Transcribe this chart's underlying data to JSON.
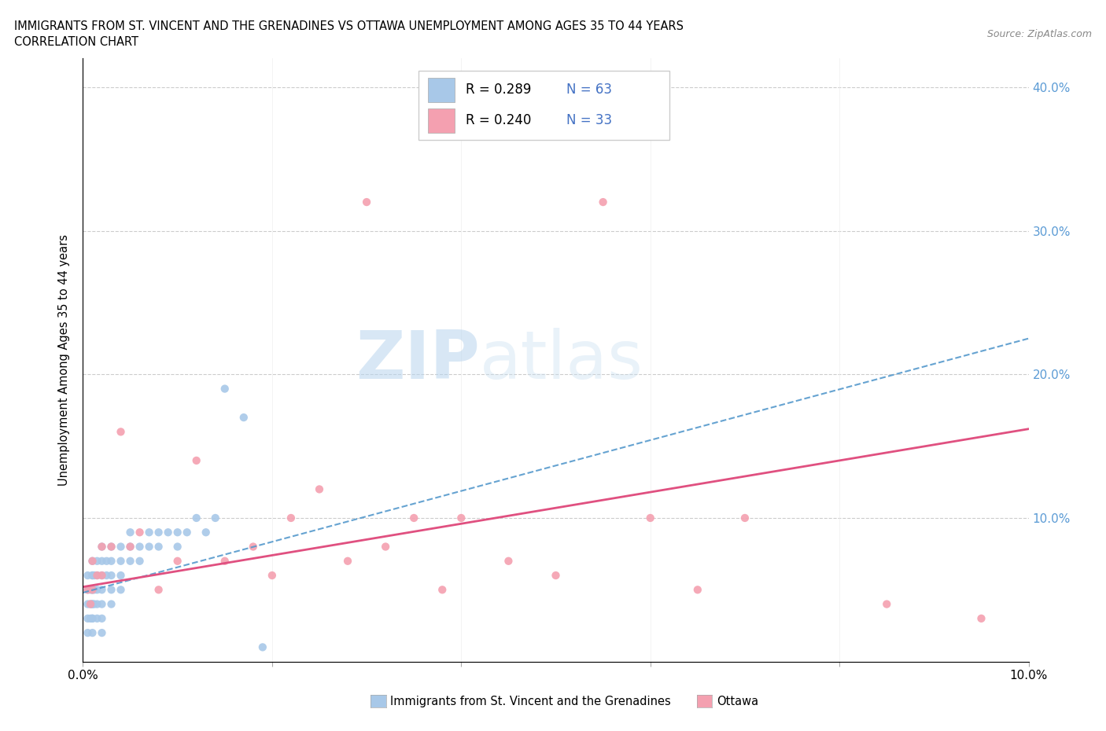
{
  "title_line1": "IMMIGRANTS FROM ST. VINCENT AND THE GRENADINES VS OTTAWA UNEMPLOYMENT AMONG AGES 35 TO 44 YEARS",
  "title_line2": "CORRELATION CHART",
  "source_text": "Source: ZipAtlas.com",
  "ylabel": "Unemployment Among Ages 35 to 44 years",
  "xlim": [
    0.0,
    0.1
  ],
  "ylim": [
    0.0,
    0.42
  ],
  "blue_color": "#a8c8e8",
  "pink_color": "#f4a0b0",
  "blue_line_color": "#5599cc",
  "pink_line_color": "#e05080",
  "blue_scatter_x": [
    0.0005,
    0.0005,
    0.0005,
    0.0005,
    0.0005,
    0.0008,
    0.0008,
    0.0008,
    0.001,
    0.001,
    0.001,
    0.001,
    0.001,
    0.001,
    0.001,
    0.001,
    0.001,
    0.001,
    0.0012,
    0.0012,
    0.0012,
    0.0015,
    0.0015,
    0.0015,
    0.0015,
    0.0015,
    0.002,
    0.002,
    0.002,
    0.002,
    0.002,
    0.002,
    0.002,
    0.0025,
    0.0025,
    0.003,
    0.003,
    0.003,
    0.003,
    0.003,
    0.004,
    0.004,
    0.004,
    0.004,
    0.005,
    0.005,
    0.005,
    0.006,
    0.006,
    0.007,
    0.007,
    0.008,
    0.008,
    0.009,
    0.01,
    0.01,
    0.011,
    0.012,
    0.013,
    0.014,
    0.015,
    0.017,
    0.019
  ],
  "blue_scatter_y": [
    0.04,
    0.05,
    0.06,
    0.03,
    0.02,
    0.05,
    0.04,
    0.03,
    0.06,
    0.05,
    0.04,
    0.03,
    0.07,
    0.06,
    0.05,
    0.04,
    0.03,
    0.02,
    0.06,
    0.05,
    0.04,
    0.07,
    0.06,
    0.05,
    0.04,
    0.03,
    0.08,
    0.07,
    0.06,
    0.05,
    0.04,
    0.03,
    0.02,
    0.07,
    0.06,
    0.08,
    0.07,
    0.06,
    0.05,
    0.04,
    0.08,
    0.07,
    0.06,
    0.05,
    0.09,
    0.08,
    0.07,
    0.08,
    0.07,
    0.09,
    0.08,
    0.09,
    0.08,
    0.09,
    0.09,
    0.08,
    0.09,
    0.1,
    0.09,
    0.1,
    0.19,
    0.17,
    0.01
  ],
  "pink_scatter_x": [
    0.0005,
    0.0008,
    0.001,
    0.001,
    0.0015,
    0.002,
    0.002,
    0.003,
    0.004,
    0.005,
    0.006,
    0.008,
    0.01,
    0.012,
    0.015,
    0.018,
    0.02,
    0.022,
    0.025,
    0.028,
    0.03,
    0.032,
    0.035,
    0.038,
    0.04,
    0.045,
    0.05,
    0.055,
    0.06,
    0.065,
    0.07,
    0.085,
    0.095
  ],
  "pink_scatter_y": [
    0.05,
    0.04,
    0.07,
    0.05,
    0.06,
    0.08,
    0.06,
    0.08,
    0.16,
    0.08,
    0.09,
    0.05,
    0.07,
    0.14,
    0.07,
    0.08,
    0.06,
    0.1,
    0.12,
    0.07,
    0.32,
    0.08,
    0.1,
    0.05,
    0.1,
    0.07,
    0.06,
    0.32,
    0.1,
    0.05,
    0.1,
    0.04,
    0.03
  ],
  "blue_line_x0": 0.0,
  "blue_line_x1": 0.1,
  "blue_line_y0": 0.048,
  "blue_line_y1": 0.225,
  "pink_line_x0": 0.0,
  "pink_line_x1": 0.1,
  "pink_line_y0": 0.052,
  "pink_line_y1": 0.162
}
